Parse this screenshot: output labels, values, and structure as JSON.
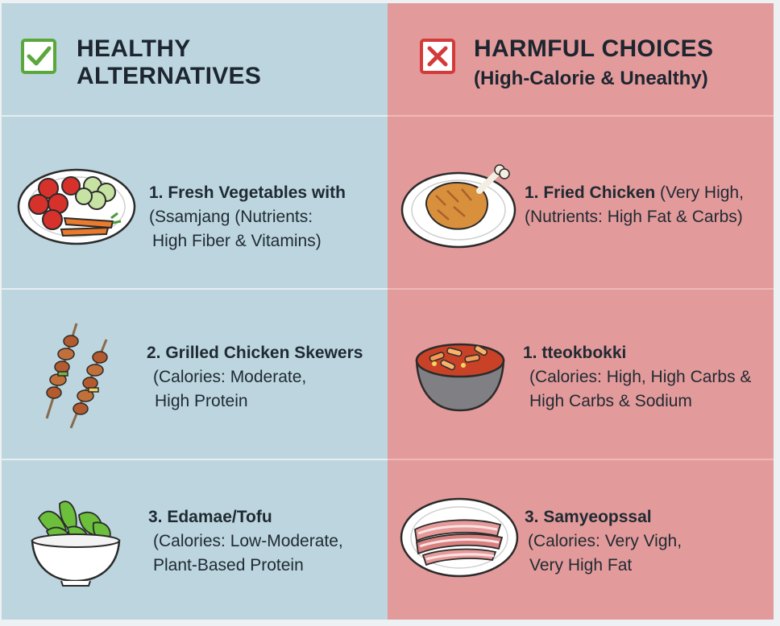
{
  "healthy": {
    "title_line1": "HEALTHY",
    "title_line2": "ALTERNATIVES",
    "items": [
      {
        "title": "1. Fresh Vegetables with",
        "lines": [
          "(Ssamjang (Nutrients:",
          "High Fiber & Vitamins)"
        ]
      },
      {
        "title": "2. Grilled Chicken Skewers",
        "lines": [
          "(Calories: Moderate,",
          "High Protein"
        ]
      },
      {
        "title": "3. Edamae/Tofu",
        "lines": [
          "(Calories: Low-Moderate,",
          "Plant-Based Protein"
        ]
      }
    ]
  },
  "harmful": {
    "title": "HARMFUL CHOICES",
    "subtitle": "(High-Calorie & Unealthy)",
    "items": [
      {
        "title": "1. Fried Chicken",
        "title_rest": " (Very High,",
        "lines": [
          "(Nutrients: High Fat & Carbs)"
        ]
      },
      {
        "title": "1. tteokbokki",
        "title_rest": "",
        "lines": [
          "(Calories: High, High Carbs &",
          "High Carbs & Sodium"
        ]
      },
      {
        "title": "3. Samyeopssal",
        "title_rest": "",
        "lines": [
          "(Calories: Very Vigh,",
          "Very High Fat"
        ]
      }
    ]
  },
  "colors": {
    "healthy_bg": "#bcd5de",
    "harmful_bg": "#e39a9a",
    "check_green": "#5aa83c",
    "cross_red": "#d33a3a"
  },
  "icons": [
    "check-icon",
    "cross-icon",
    "vegetable-plate-icon",
    "chicken-skewers-icon",
    "edamame-bowl-icon",
    "fried-chicken-icon",
    "tteokbokki-bowl-icon",
    "pork-belly-icon"
  ]
}
